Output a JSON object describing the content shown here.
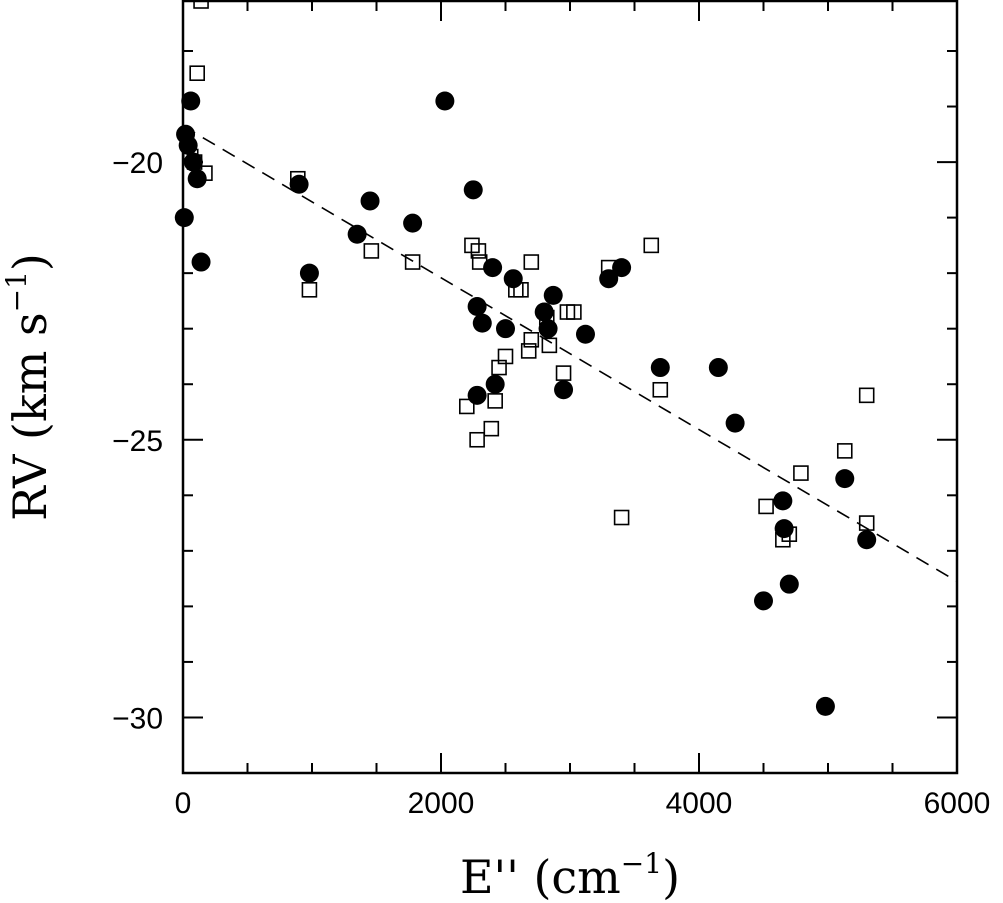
{
  "chart_data": {
    "type": "scatter",
    "title": "",
    "xlabel": "E'' (cm",
    "xlabel_sup": "−1",
    "xlabel_close": ")",
    "ylabel": "RV (km s",
    "ylabel_sup": "−1",
    "ylabel_close": ")",
    "xlim": [
      0,
      6000
    ],
    "ylim": [
      -31,
      -17.1
    ],
    "x_ticks": [
      0,
      2000,
      4000,
      6000
    ],
    "x_tick_labels": [
      "0",
      "2000",
      "4000",
      "6000"
    ],
    "y_ticks": [
      -20,
      -25,
      -30
    ],
    "y_tick_labels": [
      "−20",
      "−25",
      "−30"
    ],
    "grid": false,
    "legend": "none",
    "series": [
      {
        "marker": "filled-circle",
        "points": [
          [
            20,
            -19.5
          ],
          [
            40,
            -19.7
          ],
          [
            60,
            -18.9
          ],
          [
            80,
            -20.0
          ],
          [
            110,
            -20.3
          ],
          [
            10,
            -21.0
          ],
          [
            140,
            -21.8
          ],
          [
            900,
            -20.4
          ],
          [
            980,
            -22.0
          ],
          [
            1350,
            -21.3
          ],
          [
            1450,
            -20.7
          ],
          [
            1780,
            -21.1
          ],
          [
            2030,
            -18.9
          ],
          [
            2250,
            -20.5
          ],
          [
            2280,
            -22.6
          ],
          [
            2280,
            -24.2
          ],
          [
            2320,
            -22.9
          ],
          [
            2400,
            -21.9
          ],
          [
            2420,
            -24.0
          ],
          [
            2500,
            -23.0
          ],
          [
            2560,
            -22.1
          ],
          [
            2800,
            -22.7
          ],
          [
            2830,
            -23.0
          ],
          [
            2870,
            -22.4
          ],
          [
            2950,
            -24.1
          ],
          [
            3120,
            -23.1
          ],
          [
            3300,
            -22.1
          ],
          [
            3400,
            -21.9
          ],
          [
            3700,
            -23.7
          ],
          [
            4150,
            -23.7
          ],
          [
            4280,
            -24.7
          ],
          [
            4500,
            -27.9
          ],
          [
            4650,
            -26.1
          ],
          [
            4660,
            -26.6
          ],
          [
            4700,
            -27.6
          ],
          [
            4980,
            -29.8
          ],
          [
            5130,
            -25.7
          ],
          [
            5300,
            -26.8
          ]
        ]
      },
      {
        "marker": "open-square",
        "points": [
          [
            140,
            -17.1
          ],
          [
            110,
            -18.4
          ],
          [
            60,
            -19.9
          ],
          [
            90,
            -20.0
          ],
          [
            170,
            -20.2
          ],
          [
            890,
            -20.3
          ],
          [
            980,
            -22.3
          ],
          [
            1460,
            -21.6
          ],
          [
            1780,
            -21.8
          ],
          [
            2240,
            -21.5
          ],
          [
            2290,
            -21.6
          ],
          [
            2300,
            -21.8
          ],
          [
            2200,
            -24.4
          ],
          [
            2280,
            -25.0
          ],
          [
            2390,
            -24.8
          ],
          [
            2420,
            -24.3
          ],
          [
            2450,
            -23.7
          ],
          [
            2500,
            -23.5
          ],
          [
            2580,
            -22.3
          ],
          [
            2620,
            -22.3
          ],
          [
            2680,
            -23.4
          ],
          [
            2700,
            -23.2
          ],
          [
            2700,
            -21.8
          ],
          [
            2820,
            -22.8
          ],
          [
            2840,
            -23.3
          ],
          [
            2950,
            -23.8
          ],
          [
            2980,
            -22.7
          ],
          [
            3030,
            -22.7
          ],
          [
            3300,
            -21.9
          ],
          [
            3400,
            -26.4
          ],
          [
            3630,
            -21.5
          ],
          [
            3700,
            -24.1
          ],
          [
            4520,
            -26.2
          ],
          [
            4650,
            -26.8
          ],
          [
            4700,
            -26.7
          ],
          [
            4790,
            -25.6
          ],
          [
            5130,
            -25.2
          ],
          [
            5300,
            -24.2
          ],
          [
            5300,
            -26.5
          ]
        ]
      }
    ],
    "fit_line": {
      "style": "dashed",
      "x": [
        0,
        6000
      ],
      "y": [
        -19.35,
        -27.55
      ]
    }
  }
}
